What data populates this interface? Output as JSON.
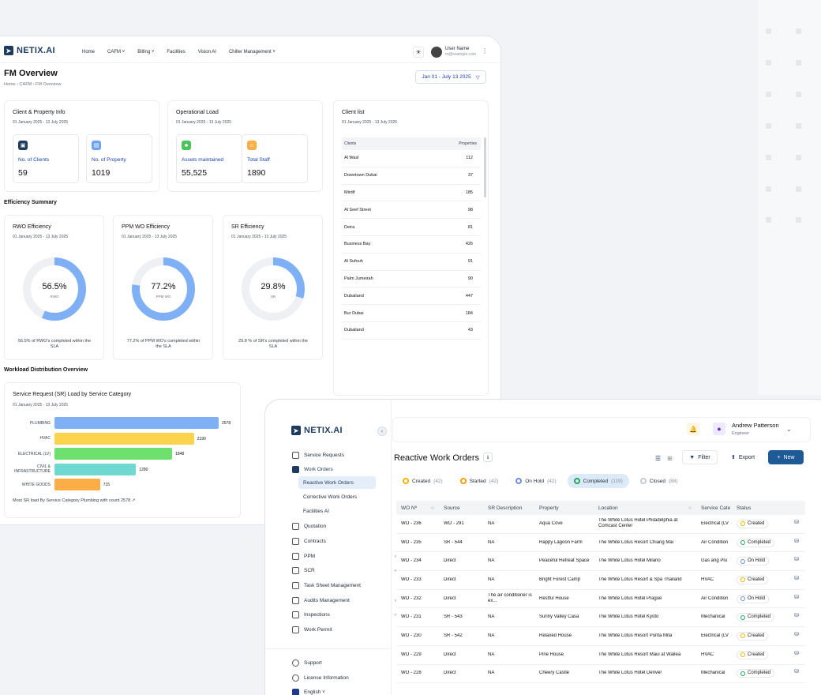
{
  "dashboard": {
    "logo": "NETIX.AI",
    "nav": [
      "Home",
      "CAFM ˅",
      "Billing ˅",
      "Facilities",
      "Vision AI",
      "Chiller Management ˅"
    ],
    "user": {
      "name": "User Name",
      "email": "m@example.com"
    },
    "title": "FM Overview",
    "breadcrumb": "Home  ›  CAFM  ›  FM Overview",
    "date_range": "Jan 01 - July 13 2025",
    "client_info": {
      "title": "Client & Property Info",
      "subtitle": "01 January 2025 - 13 July 2025",
      "clients_label": "No. of Clients",
      "clients_value": "59",
      "property_label": "No. of Property",
      "property_value": "1019"
    },
    "operational": {
      "title": "Operational Load",
      "subtitle": "01 January 2025 - 13 July 2025",
      "assets_label": "Assets  maintained",
      "assets_value": "55,525",
      "staff_label": "Total Staff",
      "staff_value": "1890"
    },
    "client_list": {
      "title": "Client list",
      "subtitle": "01 January 2025 - 13 July 2025",
      "col_clients": "Clients",
      "col_properties": "Properties",
      "rows": [
        {
          "name": "Al Wasl",
          "count": "112"
        },
        {
          "name": "Downtown Dubai",
          "count": "37"
        },
        {
          "name": "Mirdif",
          "count": "185"
        },
        {
          "name": "Al Seef Street",
          "count": "98"
        },
        {
          "name": "Deira",
          "count": "81"
        },
        {
          "name": "Business Bay",
          "count": "426"
        },
        {
          "name": "Al Sufouh",
          "count": "91"
        },
        {
          "name": "Palm Jumeirah",
          "count": "90"
        },
        {
          "name": "Dubailand",
          "count": "447"
        },
        {
          "name": "Bur Dubai",
          "count": "184"
        },
        {
          "name": "Dubailand",
          "count": "43"
        }
      ]
    },
    "efficiency_title": "Efficiency Summary",
    "efficiency": [
      {
        "title": "RWO Efficiency",
        "subtitle": "01 January 2025 - 13 July 2025",
        "pct": "56.5%",
        "value": 56.5,
        "label": "RWO",
        "caption": "56.5% of RWO's completed within the SLA"
      },
      {
        "title": "PPM WO Efficiency",
        "subtitle": "01 January 2025 - 13 July 2025",
        "pct": "77.2%",
        "value": 77.2,
        "label": "PPM WO",
        "caption": "77.2% of PPM WO's completed within the SLA"
      },
      {
        "title": "SR Efficiency",
        "subtitle": "01 January 2025 - 13 July 2025",
        "pct": "29.8%",
        "value": 29.8,
        "label": "SR",
        "caption": "29.8 % of SR's completed within the SLA"
      }
    ],
    "workload_title": "Workload Distribution Overview",
    "workload": {
      "title": "Service Request (SR) Load by Service Category",
      "subtitle": "01 January 2025 - 13 July 2025",
      "footer": "Most SR load By Service Category Plumbing with count 2578  ↗"
    }
  },
  "chart_data": {
    "type": "bar",
    "orientation": "horizontal",
    "categories": [
      "PLUMBING",
      "HVAC",
      "ELECTRICAL (LV)",
      "CIVIL & INFRASTRUCTURE",
      "WHITE GOODS"
    ],
    "values": [
      2578,
      2190,
      1848,
      1280,
      715
    ],
    "value_labels": [
      "2578",
      "2190",
      "1848",
      "1280",
      "715"
    ],
    "colors": [
      "#7fb0f5",
      "#fcd34d",
      "#6ee06e",
      "#6fd8d0",
      "#fbad46"
    ]
  },
  "workorders": {
    "logo": "NETIX.AI",
    "user": {
      "name": "Andrew Patterson",
      "role": "Engineer"
    },
    "menu": [
      {
        "label": "Service Requests",
        "chev": ""
      },
      {
        "label": "Work Orders",
        "chev": ""
      },
      {
        "label": "Quotation",
        "chev": ""
      },
      {
        "label": "Contracts",
        "chev": ""
      },
      {
        "label": "PPM",
        "chev": "›"
      },
      {
        "label": "SCR",
        "chev": "›"
      },
      {
        "label": "Task Sheet Management",
        "chev": ""
      },
      {
        "label": "Audits Management",
        "chev": "›"
      },
      {
        "label": "Inspections",
        "chev": "›"
      },
      {
        "label": "Work Permit",
        "chev": ""
      }
    ],
    "submenu": [
      "Reactive Work Orders",
      "Corrective Work Orders",
      "Facilities AI"
    ],
    "bottom_menu": [
      "Support",
      "License Information",
      "English ˅"
    ],
    "title": "Reactive Work Orders",
    "filter_label": "Filter",
    "export_label": "Export",
    "new_label": "New",
    "tabs": [
      {
        "label": "Created",
        "count": "(42)",
        "color": "#f5b400"
      },
      {
        "label": "Started",
        "count": "(42)",
        "color": "#f59e0b"
      },
      {
        "label": "On Hold",
        "count": "(42)",
        "color": "#6b8ee6"
      },
      {
        "label": "Completed",
        "count": "(119)",
        "color": "#22a55b"
      },
      {
        "label": "Closed",
        "count": "(88)",
        "color": "#c7cbd2"
      }
    ],
    "columns": [
      "WO Nº",
      "Source",
      "SR Description",
      "Property",
      "Location",
      "Service Cate",
      "Status"
    ],
    "rows": [
      {
        "wo": "WO - 236",
        "source": "WO - 291",
        "desc": "NA",
        "property": "Aqua Cove",
        "location": "The White Lotus Hotel Philadelphia at Comcast Center",
        "category": "Electrical (LV",
        "status": "Created"
      },
      {
        "wo": "WO - 235",
        "source": "SR - 544",
        "desc": "NA",
        "property": "Happy Lagoon Farm",
        "location": "The White Lotus Resort Chiang Mai",
        "category": "Air Condition",
        "status": "Completed"
      },
      {
        "wo": "WO - 234",
        "source": "Direct",
        "desc": "NA",
        "property": "Peaceful Retreat Space",
        "location": "The White Lotus Hotel Milano",
        "category": "Gas ang Plu",
        "status": "On Hold"
      },
      {
        "wo": "WO - 233",
        "source": "Direct",
        "desc": "NA",
        "property": "Bright Forest Camp",
        "location": "The White Lotus Resort & Spa Thailand",
        "category": "HVAC",
        "status": "Created"
      },
      {
        "wo": "WO - 232",
        "source": "Direct",
        "desc": "The air conditioner is ex...",
        "property": "Restful House",
        "location": "The White Lotus Hotel Prague",
        "category": "Air Condition",
        "status": "On Hold"
      },
      {
        "wo": "WO - 231",
        "source": "SR - 543",
        "desc": "NA",
        "property": "Sunny Valley Casa",
        "location": "The White Lotus Hotel Kyoto",
        "category": "Mechanical",
        "status": "Completed"
      },
      {
        "wo": "WO - 230",
        "source": "SR - 542",
        "desc": "NA",
        "property": "Relaxed House",
        "location": "The White Lotus Resort Punta Mita",
        "category": "Electrical (LV",
        "status": "Created"
      },
      {
        "wo": "WO - 229",
        "source": "Direct",
        "desc": "NA",
        "property": "Pine House",
        "location": "The White Lotus Resort Maui at Wailea",
        "category": "HVAC",
        "status": "Created"
      },
      {
        "wo": "WO - 228",
        "source": "Direct",
        "desc": "NA",
        "property": "Cheery Castle",
        "location": "The White Lotus Hotel Denver",
        "category": "Mechanical",
        "status": "Completed"
      }
    ],
    "status_colors": {
      "Created": "#f5b400",
      "Completed": "#22a55b",
      "On Hold": "#6b8ee6"
    }
  }
}
